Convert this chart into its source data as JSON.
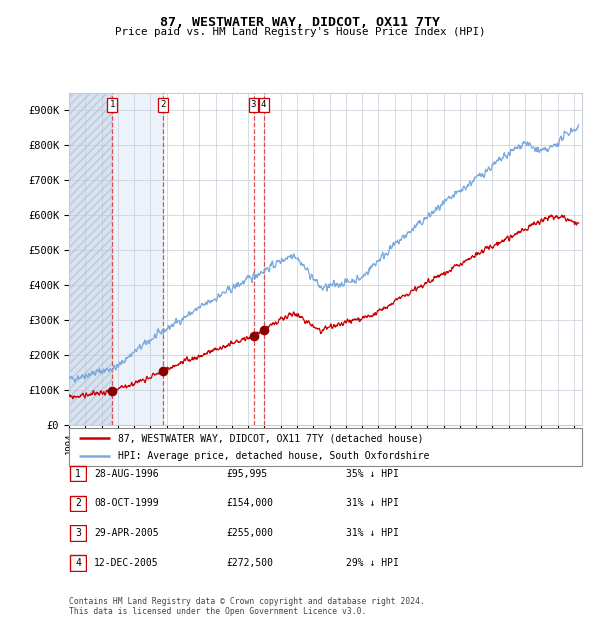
{
  "title1": "87, WESTWATER WAY, DIDCOT, OX11 7TY",
  "title2": "Price paid vs. HM Land Registry's House Price Index (HPI)",
  "legend1": "87, WESTWATER WAY, DIDCOT, OX11 7TY (detached house)",
  "legend2": "HPI: Average price, detached house, South Oxfordshire",
  "footer1": "Contains HM Land Registry data © Crown copyright and database right 2024.",
  "footer2": "This data is licensed under the Open Government Licence v3.0.",
  "transactions": [
    {
      "num": 1,
      "date": "28-AUG-1996",
      "price": "£95,995",
      "pct": "35% ↓ HPI",
      "x_year": 1996.65,
      "y_val": 95995
    },
    {
      "num": 2,
      "date": "08-OCT-1999",
      "price": "£154,000",
      "pct": "31% ↓ HPI",
      "x_year": 1999.77,
      "y_val": 154000
    },
    {
      "num": 3,
      "date": "29-APR-2005",
      "price": "£255,000",
      "pct": "31% ↓ HPI",
      "x_year": 2005.33,
      "y_val": 255000
    },
    {
      "num": 4,
      "date": "12-DEC-2005",
      "price": "£272,500",
      "pct": "29% ↓ HPI",
      "x_year": 2005.95,
      "y_val": 272500
    }
  ],
  "hatch_region": {
    "x_start": 1994.0,
    "x_end": 1996.65
  },
  "shade_region": {
    "x_start": 1996.65,
    "x_end": 1999.77
  },
  "vline_dates": [
    1996.65,
    1999.77,
    2005.33,
    2005.95
  ],
  "x_min": 1994.0,
  "x_max": 2025.5,
  "y_min": 0,
  "y_max": 950000,
  "y_ticks": [
    0,
    100000,
    200000,
    300000,
    400000,
    500000,
    600000,
    700000,
    800000,
    900000
  ],
  "y_tick_labels": [
    "£0",
    "£100K",
    "£200K",
    "£300K",
    "£400K",
    "£500K",
    "£600K",
    "£700K",
    "£800K",
    "£900K"
  ],
  "grid_color": "#c8ccd8",
  "hpi_color": "#7aaadd",
  "price_color": "#cc0000",
  "dot_color": "#880000",
  "shade_color": "#dce8f5",
  "vline_color": "#dd3333",
  "background_color": "#ffffff",
  "hpi_seed": 42,
  "prop_seed": 99
}
